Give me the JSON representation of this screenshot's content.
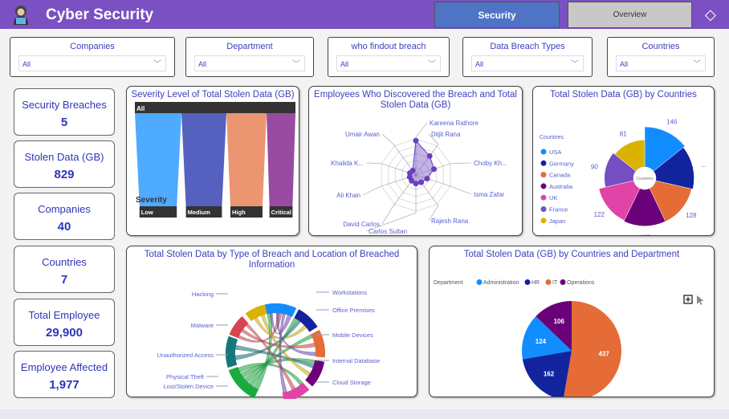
{
  "header": {
    "title": "Cyber Security",
    "nav_security": "Security",
    "nav_overview": "Overview",
    "icons": {
      "logo": "hacker-avatar-icon",
      "clear": "eraser-icon"
    },
    "color": "#7a50c2"
  },
  "slicers": [
    {
      "label": "Companies",
      "value": "All"
    },
    {
      "label": "Department",
      "value": "All"
    },
    {
      "label": "who findout breach",
      "value": "All"
    },
    {
      "label": "Data Breach Types",
      "value": "All"
    },
    {
      "label": "Countries",
      "value": "All"
    }
  ],
  "kpis": [
    {
      "label": "Security Breaches",
      "value": "5"
    },
    {
      "label": "Stolen Data (GB)",
      "value": "829"
    },
    {
      "label": "Companies",
      "value": "40"
    },
    {
      "label": "Countries",
      "value": "7"
    },
    {
      "label": "Total Employee",
      "value": "29,900"
    },
    {
      "label": "Employee Affected",
      "value": "1,977"
    }
  ],
  "chart_data": [
    {
      "type": "decomposition",
      "title": "Severity Level of Total Stolen Data (GB)",
      "root": "All",
      "level_label": "Severity",
      "categories": [
        "Low",
        "Medium",
        "High",
        "Critical"
      ],
      "shares": [
        0.29,
        0.28,
        0.25,
        0.18
      ],
      "colors": [
        "#4fabff",
        "#5560bf",
        "#eb9670",
        "#984ba0"
      ]
    },
    {
      "type": "radar",
      "title": "Employees Who Discovered the Breach and Total Stolen Data (GB)",
      "categories": [
        "Kareena Rathore",
        "Diljit Rana",
        "Choby Kh...",
        "Isma Zafar",
        "Rajesh Rana",
        "Carlos Sultan",
        "David Carlos",
        "Ali Khan",
        "Khalida K...",
        "Umair Awan"
      ],
      "values": [
        190,
        130,
        105,
        65,
        50,
        48,
        40,
        36,
        35,
        30
      ],
      "color": "#6a3fc0"
    },
    {
      "type": "pie",
      "variant": "rose",
      "title": "Total Stolen Data (GB) by Countries",
      "legend_title": "Countries",
      "center_label": "Countries",
      "legend": "left",
      "categories": [
        "USA",
        "Germany",
        "Canada",
        "Australia",
        "UK",
        "France",
        "Japan"
      ],
      "values": [
        146,
        135,
        128,
        127,
        122,
        90,
        81
      ],
      "labels": [
        "146",
        "...",
        "128",
        "127",
        "122",
        "90",
        "81"
      ],
      "colors": [
        "#118dff",
        "#12239e",
        "#e66c37",
        "#6b007b",
        "#e044a7",
        "#744ec2",
        "#d9b300"
      ]
    },
    {
      "type": "chord",
      "title": "Total Stolen Data by Type of Breach and Location of Breached Information",
      "sources": [
        "Hacking",
        "Malware",
        "Unauthorized Access",
        "Physical Theft",
        "Lost/Stolen Device"
      ],
      "targets": [
        "Workstations",
        "Office Premises",
        "Mobile Devices",
        "Internal Database",
        "Cloud Storage"
      ],
      "source_colors": [
        "#1aab40",
        "#15777b",
        "#d64550",
        "#d9b300",
        "#744ec2"
      ],
      "target_colors": [
        "#118dff",
        "#12239e",
        "#e66c37",
        "#6b007b",
        "#e044a7"
      ]
    },
    {
      "type": "pie",
      "title": "Total Stolen Data (GB) by Countries and Department",
      "legend_title": "Department",
      "legend": "top-left",
      "categories": [
        "IT",
        "HR",
        "Administration",
        "Operations"
      ],
      "values": [
        437,
        162,
        124,
        106
      ],
      "legend_order": [
        "Administration",
        "HR",
        "IT",
        "Operations"
      ],
      "colors": {
        "Administration": "#118dff",
        "HR": "#12239e",
        "IT": "#e66c37",
        "Operations": "#6b007b"
      },
      "icons": [
        "focus-mode-icon",
        "cursor-icon"
      ]
    }
  ]
}
